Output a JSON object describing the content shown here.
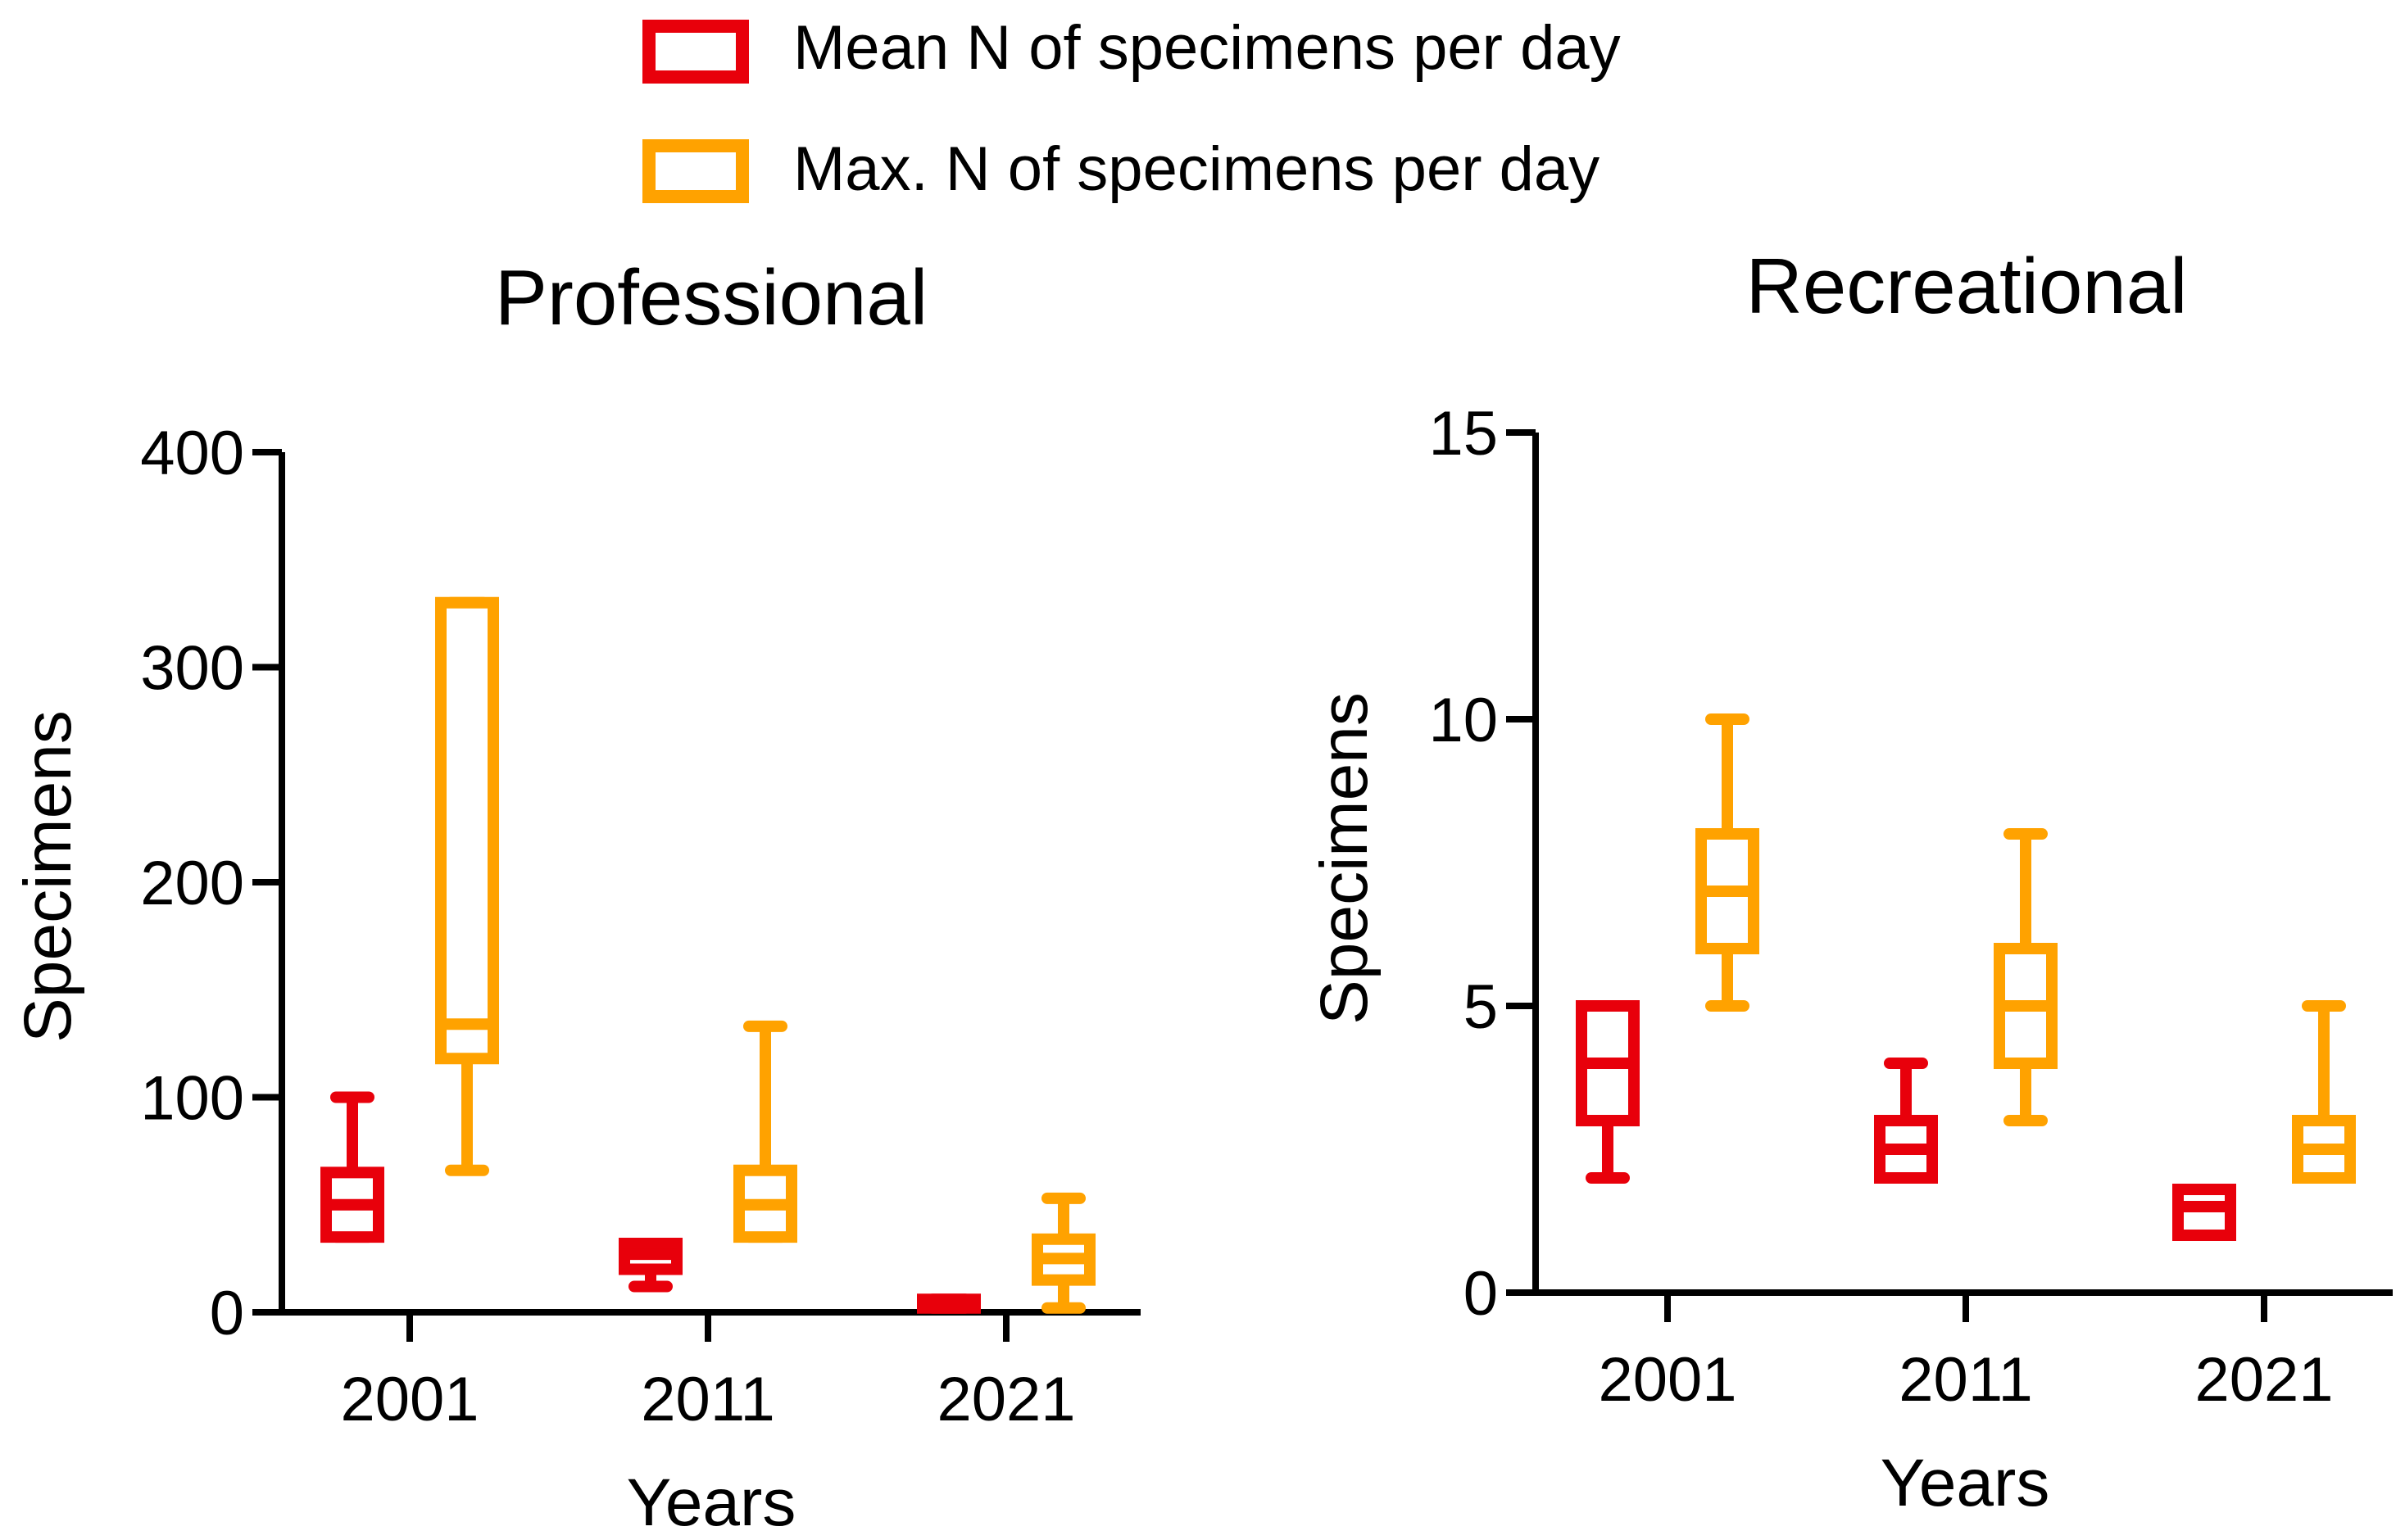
{
  "legend": [
    {
      "label": "Mean N of specimens per day",
      "color": "#e8000b"
    },
    {
      "label": "Max. N of specimens per day",
      "color": "#ffa200"
    }
  ],
  "chart_data": [
    {
      "type": "box",
      "title": "Professional",
      "xlabel": "Years",
      "ylabel": "Specimens",
      "ylim": [
        0,
        400
      ],
      "yticks": [
        0,
        100,
        200,
        300,
        400
      ],
      "categories": [
        "2001",
        "2011",
        "2021"
      ],
      "series": [
        {
          "name": "Mean N of specimens per day",
          "color": "#e8000b",
          "boxes": [
            {
              "min": 35,
              "q1": 35,
              "median": 50,
              "q3": 65,
              "max": 100
            },
            {
              "min": 12,
              "q1": 20,
              "median": 27,
              "q3": 32,
              "max": 32
            },
            {
              "min": 2,
              "q1": 2,
              "median": 4,
              "q3": 6,
              "max": 6
            }
          ]
        },
        {
          "name": "Max. N of specimens per day",
          "color": "#ffa200",
          "boxes": [
            {
              "min": 66,
              "q1": 118,
              "median": 134,
              "q3": 330,
              "max": 330
            },
            {
              "min": 35,
              "q1": 35,
              "median": 50,
              "q3": 66,
              "max": 133
            },
            {
              "min": 2,
              "q1": 15,
              "median": 25,
              "q3": 34,
              "max": 53
            }
          ]
        }
      ]
    },
    {
      "type": "box",
      "title": "Recreational",
      "xlabel": "Years",
      "ylabel": "Specimens",
      "ylim": [
        0,
        15
      ],
      "yticks": [
        0,
        5,
        10,
        15
      ],
      "categories": [
        "2001",
        "2011",
        "2021"
      ],
      "series": [
        {
          "name": "Mean N of specimens per day",
          "color": "#e8000b",
          "boxes": [
            {
              "min": 2,
              "q1": 3,
              "median": 4,
              "q3": 5,
              "max": 5
            },
            {
              "min": 2,
              "q1": 2,
              "median": 2.5,
              "q3": 3,
              "max": 4
            },
            {
              "min": 1,
              "q1": 1,
              "median": 1.5,
              "q3": 1.8,
              "max": 1.8
            }
          ]
        },
        {
          "name": "Max. N of specimens per day",
          "color": "#ffa200",
          "boxes": [
            {
              "min": 5,
              "q1": 6,
              "median": 7,
              "q3": 8,
              "max": 10
            },
            {
              "min": 3,
              "q1": 4,
              "median": 5,
              "q3": 6,
              "max": 8
            },
            {
              "min": 2,
              "q1": 2,
              "median": 2.5,
              "q3": 3,
              "max": 5
            }
          ]
        }
      ]
    }
  ]
}
